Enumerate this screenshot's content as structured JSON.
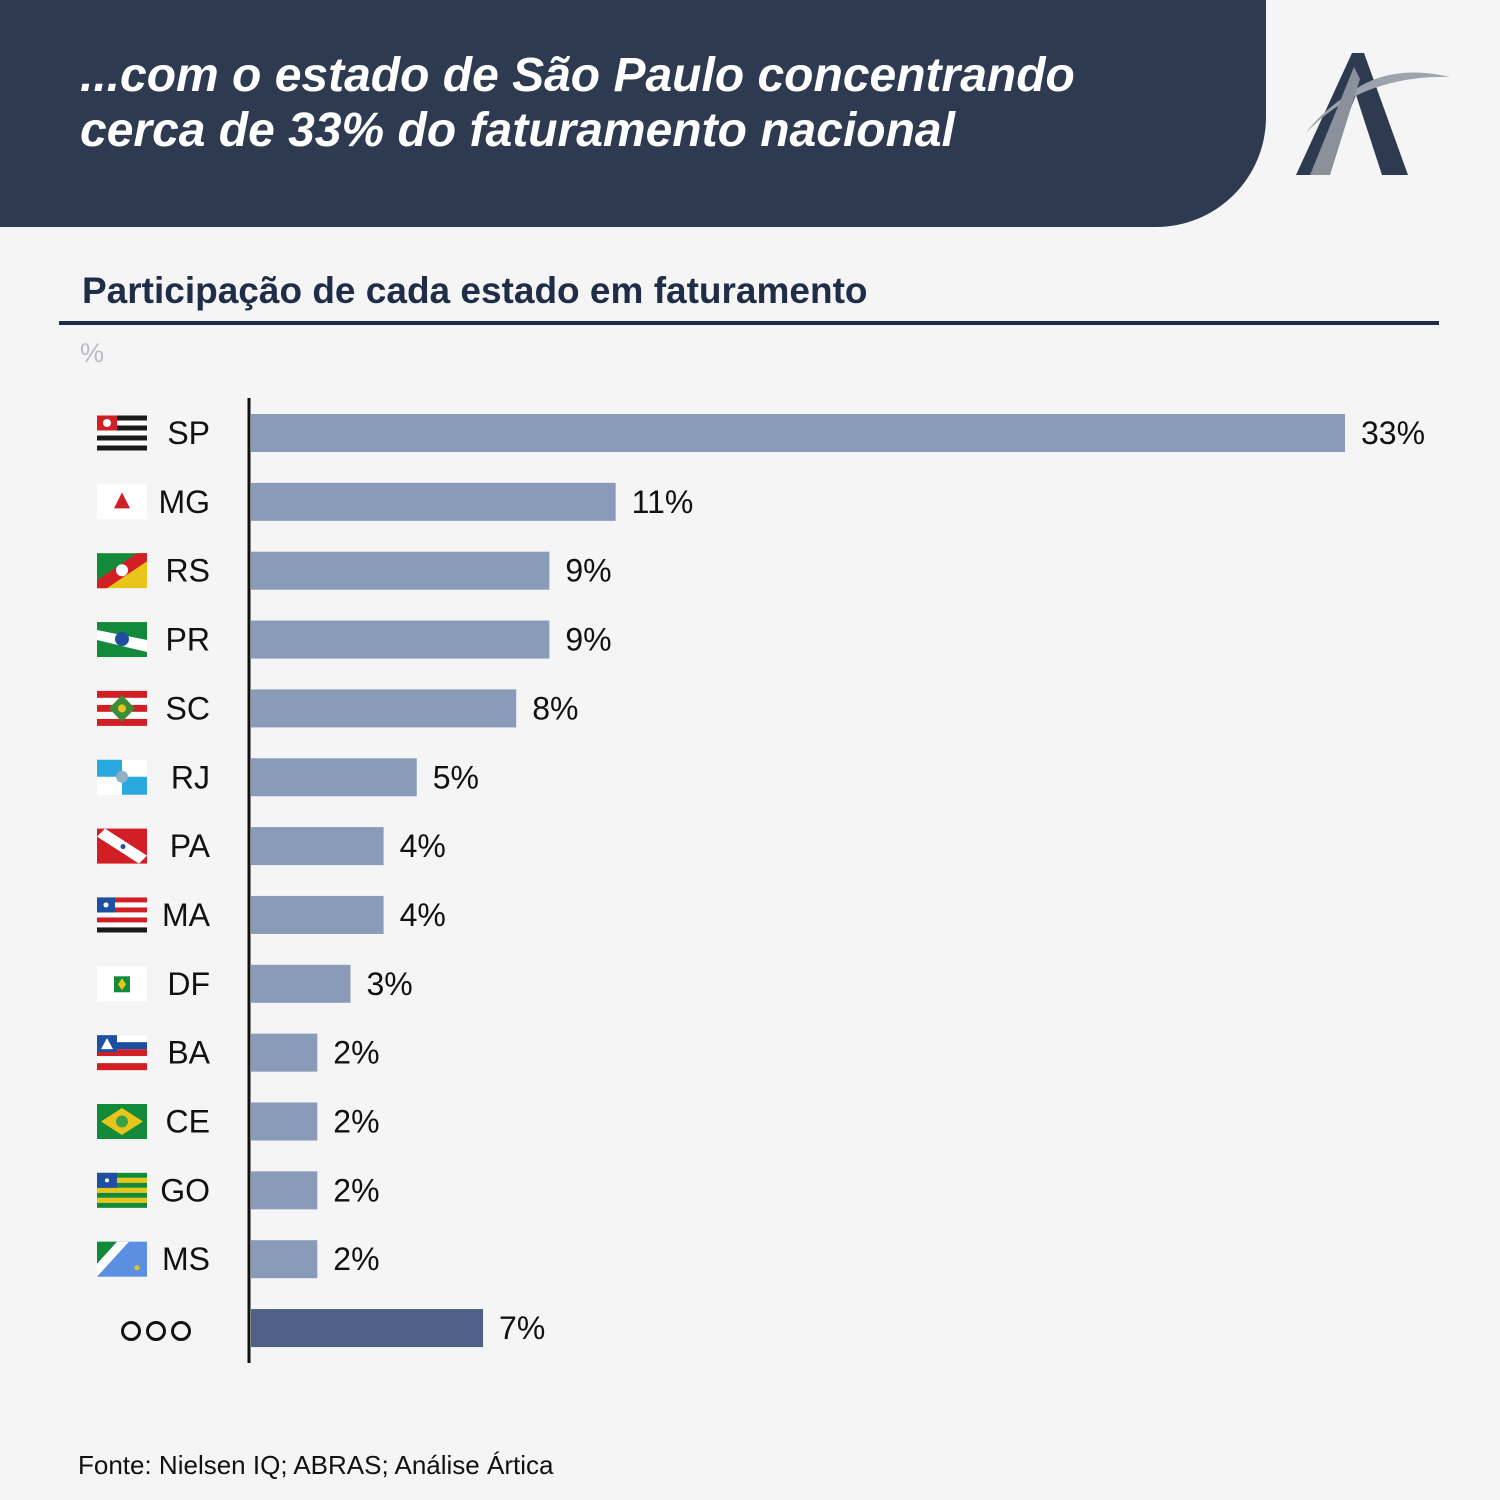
{
  "header": {
    "title_line1": "...com o estado de São Paulo concentrando",
    "title_line2": "cerca de 33% do faturamento nacional",
    "logo_icon": "artica-logo-icon"
  },
  "colors": {
    "header_bg": "#2d3a4f",
    "bar": "#8a9bba",
    "bar_other": "#4f6187",
    "title": "#1f2d48"
  },
  "chart_data": {
    "type": "bar",
    "orientation": "horizontal",
    "title": "Participação de cada estado em faturamento",
    "unit": "%",
    "categories": [
      "SP",
      "MG",
      "RS",
      "PR",
      "SC",
      "RJ",
      "PA",
      "MA",
      "DF",
      "BA",
      "CE",
      "GO",
      "MS",
      "ooo"
    ],
    "values": [
      33,
      11,
      9,
      9,
      8,
      5,
      4,
      4,
      3,
      2,
      2,
      2,
      2,
      7
    ],
    "value_labels": [
      "33%",
      "11%",
      "9%",
      "9%",
      "8%",
      "5%",
      "4%",
      "4%",
      "3%",
      "2%",
      "2%",
      "2%",
      "2%",
      "7%"
    ],
    "icons": [
      "flag-sp-icon",
      "flag-mg-icon",
      "flag-rs-icon",
      "flag-pr-icon",
      "flag-sc-icon",
      "flag-rj-icon",
      "flag-pa-icon",
      "flag-ma-icon",
      "flag-df-icon",
      "flag-ba-icon",
      "flag-ce-icon",
      "flag-go-icon",
      "flag-ms-icon",
      "ellipsis-icon"
    ],
    "xlim": [
      0,
      33
    ],
    "grid": false,
    "legend": "none"
  },
  "source": "Fonte: Nielsen IQ; ABRAS; Análise Ártica"
}
